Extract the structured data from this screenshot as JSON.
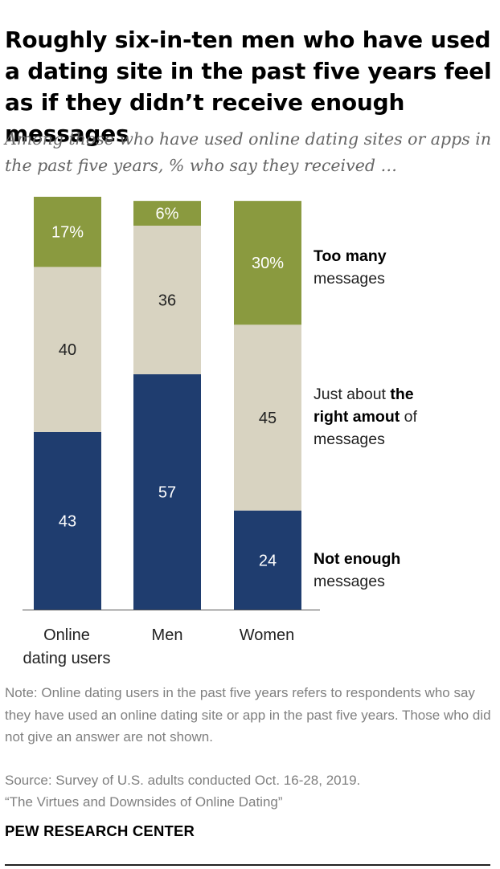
{
  "title": "Roughly six-in-ten men who have used a dating site in the past five years feel as if they didn’t receive enough messages",
  "subtitle": "Among those who have used online dating sites or apps in the past five years, % who say they received …",
  "chart_data": {
    "type": "bar",
    "stacked": true,
    "orientation": "vertical",
    "categories": [
      "Online dating users",
      "Men",
      "Women"
    ],
    "series": [
      {
        "name": "Not enough messages",
        "values": [
          43,
          57,
          24
        ],
        "labels": [
          "43",
          "57",
          "24"
        ],
        "color": "#1f3d6f"
      },
      {
        "name": "Just about the right amout of messages",
        "values": [
          40,
          36,
          45
        ],
        "labels": [
          "40",
          "36",
          "45"
        ],
        "color": "#d8d3c1"
      },
      {
        "name": "Too many messages",
        "values": [
          17,
          6,
          30
        ],
        "labels": [
          "17%",
          "6%",
          "30%"
        ],
        "color": "#8a9a3f"
      }
    ],
    "ylim": [
      0,
      100
    ]
  },
  "category_lines": [
    [
      "Online",
      "dating users"
    ],
    [
      "Men"
    ],
    [
      "Women"
    ]
  ],
  "legend": {
    "too_many": {
      "bold": "Too many",
      "rest": "messages"
    },
    "right": {
      "pre": "Just about ",
      "bold1": "the",
      "bold2": "right amout",
      "post": " of",
      "last": "messages"
    },
    "not_enough": {
      "bold": "Not enough",
      "rest": "messages"
    }
  },
  "note": "Note: Online dating users in the past five years refers to respondents who say they have used an online dating site or app in the past five years. Those who did not give an answer are not shown.",
  "source_line1": "Source: Survey of U.S. adults conducted Oct. 16-28, 2019.",
  "source_line2": "“The Virtues and Downsides of Online Dating”",
  "brand": "PEW RESEARCH CENTER"
}
